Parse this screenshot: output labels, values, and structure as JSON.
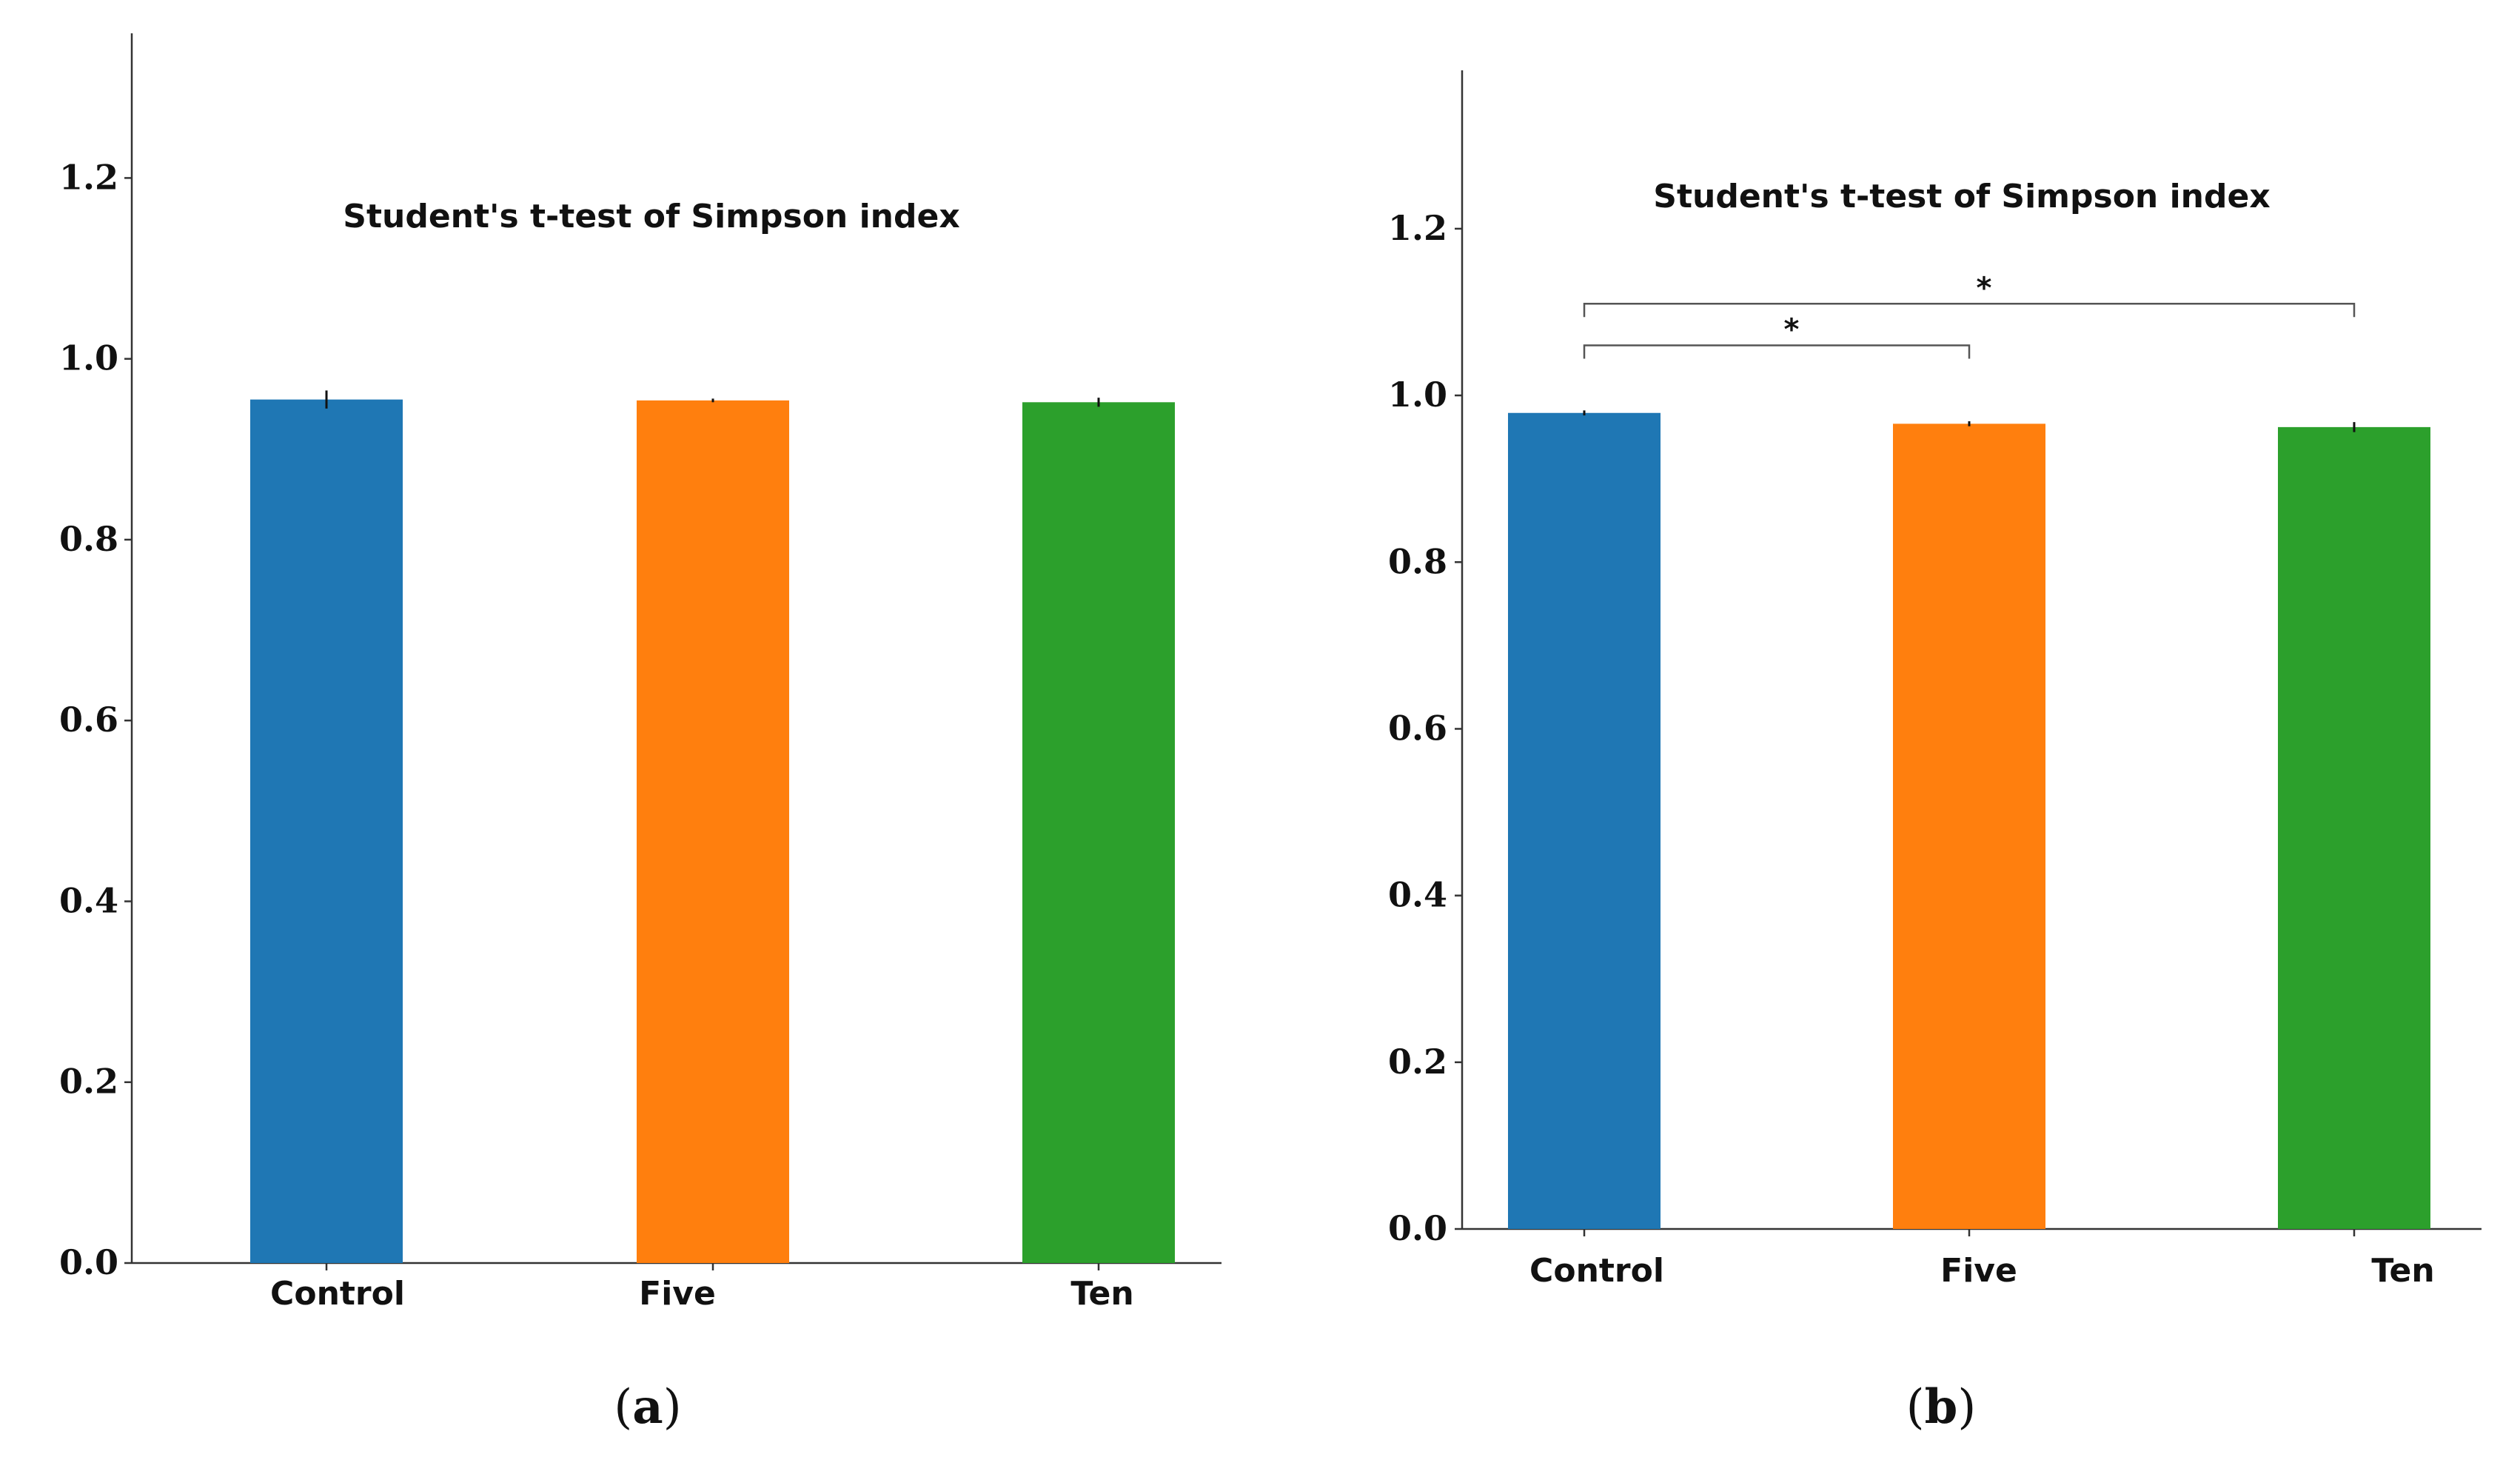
{
  "chart_data": [
    {
      "type": "bar",
      "panel": "a",
      "title": "Student's t-test of Simpson index",
      "categories": [
        "Control",
        "Five",
        "Ten"
      ],
      "values": [
        0.955,
        0.954,
        0.952
      ],
      "errors": [
        0.01,
        0.002,
        0.005
      ],
      "colors": [
        "#1f77b4",
        "#ff7f0e",
        "#2ca02c"
      ],
      "yticks": [
        "0.0",
        "0.2",
        "0.4",
        "0.6",
        "0.8",
        "1.0",
        "1.2"
      ],
      "ylim": [
        0,
        1.36
      ],
      "xlabel": "",
      "ylabel": "",
      "significance": []
    },
    {
      "type": "bar",
      "panel": "b",
      "title": "Student's t-test of Simpson index",
      "categories": [
        "Control",
        "Five",
        "Ten"
      ],
      "values": [
        0.979,
        0.966,
        0.962
      ],
      "errors": [
        0.003,
        0.003,
        0.006
      ],
      "colors": [
        "#1f77b4",
        "#ff7f0e",
        "#2ca02c"
      ],
      "yticks": [
        "0.0",
        "0.2",
        "0.4",
        "0.6",
        "0.8",
        "1.0",
        "1.2"
      ],
      "ylim": [
        0,
        1.39
      ],
      "xlabel": "",
      "ylabel": "",
      "significance": [
        {
          "from": "Control",
          "to": "Five",
          "y": 1.06,
          "label": "*"
        },
        {
          "from": "Control",
          "to": "Ten",
          "y": 1.11,
          "label": "*"
        }
      ]
    }
  ],
  "panel_labels": [
    {
      "open": "(",
      "letter": "a",
      "close": ")"
    },
    {
      "open": "(",
      "letter": "b",
      "close": ")"
    }
  ]
}
